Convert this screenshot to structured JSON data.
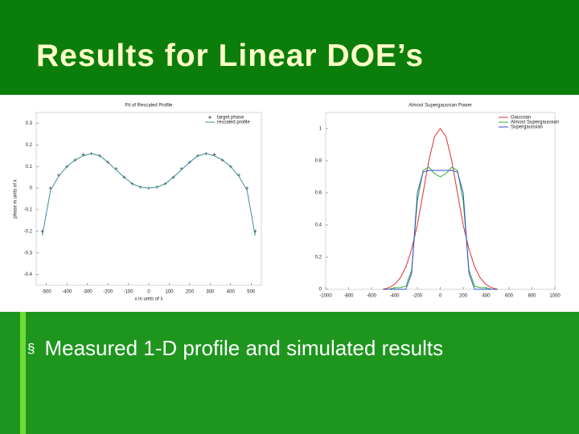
{
  "slide": {
    "title": "Results for Linear DOE’s",
    "bullet_marker": "§",
    "bullet": "Measured 1-D profile and simulated results"
  },
  "chart_data": [
    {
      "type": "line",
      "title": "Fit of Rescaled Profile",
      "x_label": "x in units of λ",
      "y_label": "phase in units of λ",
      "x": [
        -520,
        -480,
        -440,
        -400,
        -360,
        -320,
        -280,
        -240,
        -200,
        -160,
        -120,
        -80,
        -40,
        0,
        40,
        80,
        120,
        160,
        200,
        240,
        280,
        320,
        360,
        400,
        440,
        480,
        520
      ],
      "series": [
        {
          "name": "target phase",
          "marker": "+",
          "color": "#333333",
          "values": [
            -0.2,
            0.0,
            0.06,
            0.1,
            0.13,
            0.155,
            0.16,
            0.15,
            0.12,
            0.09,
            0.05,
            0.02,
            0.005,
            0.0,
            0.005,
            0.02,
            0.05,
            0.09,
            0.12,
            0.15,
            0.16,
            0.155,
            0.13,
            0.1,
            0.06,
            0.0,
            -0.2
          ]
        },
        {
          "name": "rescaled profile",
          "color": "#3a8f9a",
          "values": [
            -0.22,
            -0.01,
            0.055,
            0.1,
            0.13,
            0.15,
            0.16,
            0.15,
            0.12,
            0.085,
            0.05,
            0.02,
            0.005,
            0.0,
            0.005,
            0.02,
            0.05,
            0.085,
            0.12,
            0.15,
            0.16,
            0.15,
            0.13,
            0.1,
            0.055,
            -0.01,
            -0.22
          ]
        }
      ],
      "xlim": [
        -550,
        550
      ],
      "ylim": [
        -0.45,
        0.35
      ],
      "xticks": [
        -500,
        -400,
        -300,
        -200,
        -100,
        0,
        100,
        200,
        300,
        400,
        500
      ],
      "yticks": [
        -0.4,
        -0.3,
        -0.2,
        -0.1,
        0,
        0.1,
        0.2,
        0.3
      ],
      "legend": "top-right"
    },
    {
      "type": "line",
      "title": "Almost Supergaussian Power",
      "x": [
        -500,
        -450,
        -400,
        -350,
        -300,
        -250,
        -200,
        -150,
        -100,
        -50,
        0,
        50,
        100,
        150,
        200,
        250,
        300,
        350,
        400,
        450,
        500
      ],
      "series": [
        {
          "name": "Gaussian",
          "color": "#e03030",
          "values": [
            0,
            0.01,
            0.03,
            0.07,
            0.14,
            0.25,
            0.4,
            0.6,
            0.8,
            0.95,
            1,
            0.95,
            0.8,
            0.6,
            0.4,
            0.25,
            0.14,
            0.07,
            0.03,
            0.01,
            0
          ]
        },
        {
          "name": "Almost Supergaussian",
          "color": "#30b030",
          "values": [
            0,
            0,
            0.01,
            0.01,
            0.02,
            0.12,
            0.55,
            0.74,
            0.76,
            0.72,
            0.7,
            0.72,
            0.76,
            0.74,
            0.55,
            0.12,
            0.02,
            0.01,
            0.01,
            0,
            0
          ]
        },
        {
          "name": "Supergaussian",
          "color": "#3050d0",
          "values": [
            0,
            0,
            0,
            0,
            0,
            0.1,
            0.6,
            0.73,
            0.74,
            0.74,
            0.74,
            0.74,
            0.74,
            0.73,
            0.6,
            0.1,
            0,
            0,
            0,
            0,
            0
          ]
        }
      ],
      "xlim": [
        -1000,
        1000
      ],
      "ylim": [
        0,
        1.1
      ],
      "xticks": [
        -1000,
        -800,
        -600,
        -400,
        -200,
        0,
        200,
        400,
        600,
        800,
        1000
      ],
      "yticks": [
        0,
        0.2,
        0.4,
        0.6,
        0.8,
        1
      ],
      "legend": "top-right"
    }
  ]
}
